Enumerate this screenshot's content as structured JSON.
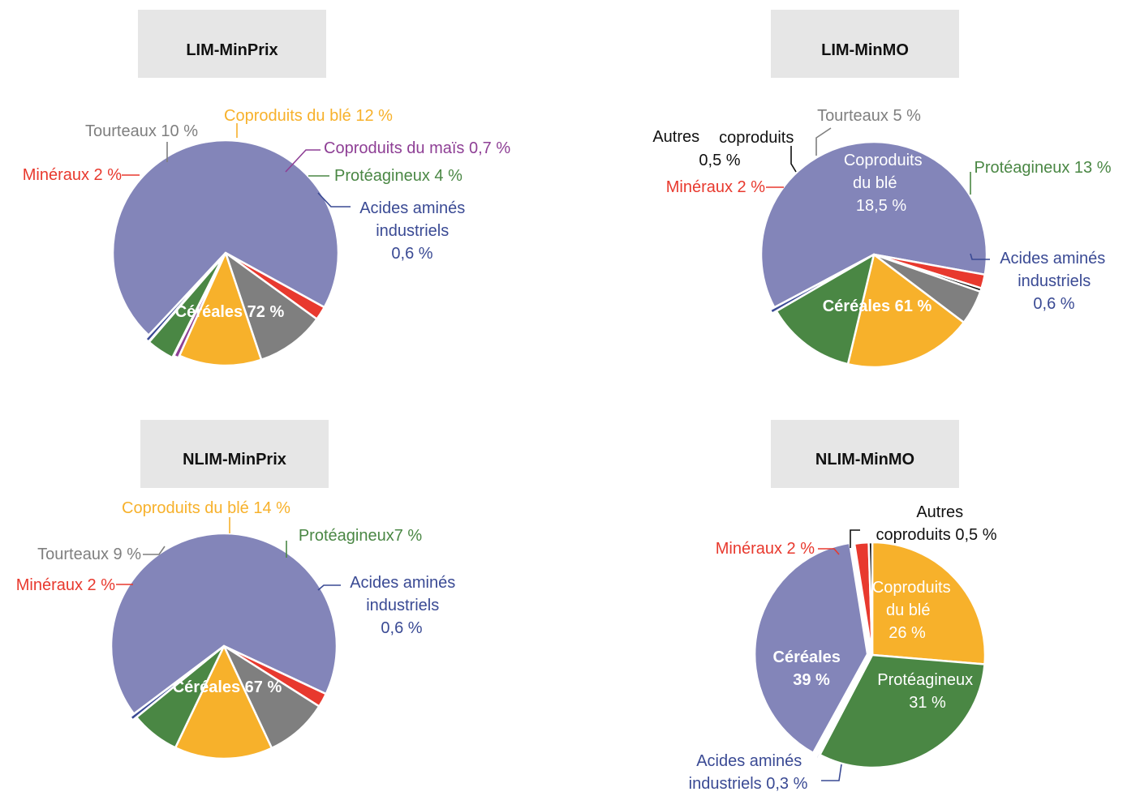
{
  "colors": {
    "cereales": "#8385b9",
    "coproduits_ble": "#f7b12b",
    "tourteaux": "#7f7f7f",
    "mineraux": "#e8392e",
    "proteagineux": "#4a8744",
    "acides_amines": "#3a4a94",
    "coproduits_mais": "#8e3f95",
    "autres_coproduits": "#111111",
    "title_box": "#e6e6e6"
  },
  "chart_data": [
    {
      "type": "pie",
      "title": "LIM-MinPrix",
      "slices": [
        {
          "key": "cereales",
          "label": "Céréales 72 %",
          "value": 72,
          "color": "#8385b9"
        },
        {
          "key": "mineraux",
          "label": "Minéraux 2 %",
          "value": 2,
          "color": "#e8392e"
        },
        {
          "key": "tourteaux",
          "label": "Tourteaux 10 %",
          "value": 10,
          "color": "#7f7f7f"
        },
        {
          "key": "coproduits_ble",
          "label": "Coproduits du blé 12 %",
          "value": 12,
          "color": "#f7b12b"
        },
        {
          "key": "coproduits_mais",
          "label": "Coproduits du maïs 0,7 %",
          "value": 0.7,
          "color": "#8e3f95"
        },
        {
          "key": "proteagineux",
          "label": "Protéagineux 4 %",
          "value": 4,
          "color": "#4a8744"
        },
        {
          "key": "acides_amines",
          "label": "Acides aminés industriels 0,6 %",
          "value": 0.6,
          "color": "#3a4a94"
        }
      ]
    },
    {
      "type": "pie",
      "title": "LIM-MinMO",
      "slices": [
        {
          "key": "cereales",
          "label": "Céréales 61 %",
          "value": 61,
          "color": "#8385b9"
        },
        {
          "key": "mineraux",
          "label": "Minéraux 2 %",
          "value": 2,
          "color": "#e8392e"
        },
        {
          "key": "autres_coproduits",
          "label": "Autres coproduits 0,5 %",
          "value": 0.5,
          "color": "#111111"
        },
        {
          "key": "tourteaux",
          "label": "Tourteaux 5 %",
          "value": 5,
          "color": "#7f7f7f"
        },
        {
          "key": "coproduits_ble",
          "label": "Coproduits du blé 18,5 %",
          "value": 18.5,
          "color": "#f7b12b"
        },
        {
          "key": "proteagineux",
          "label": "Protéagineux 13 %",
          "value": 13,
          "color": "#4a8744"
        },
        {
          "key": "acides_amines",
          "label": "Acides aminés industriels 0,6 %",
          "value": 0.6,
          "color": "#3a4a94"
        }
      ]
    },
    {
      "type": "pie",
      "title": "NLIM-MinPrix",
      "slices": [
        {
          "key": "cereales",
          "label": "Céréales 67 %",
          "value": 67,
          "color": "#8385b9"
        },
        {
          "key": "mineraux",
          "label": "Minéraux 2 %",
          "value": 2,
          "color": "#e8392e"
        },
        {
          "key": "tourteaux",
          "label": "Tourteaux 9 %",
          "value": 9,
          "color": "#7f7f7f"
        },
        {
          "key": "coproduits_ble",
          "label": "Coproduits du blé 14 %",
          "value": 14,
          "color": "#f7b12b"
        },
        {
          "key": "proteagineux",
          "label": "Protéagineux7 %",
          "value": 7,
          "color": "#4a8744"
        },
        {
          "key": "acides_amines",
          "label": "Acides aminés industriels 0,6 %",
          "value": 0.6,
          "color": "#3a4a94"
        }
      ]
    },
    {
      "type": "pie",
      "title": "NLIM-MinMO",
      "slices": [
        {
          "key": "coproduits_ble",
          "label": "Coproduits du blé 26 %",
          "value": 26,
          "color": "#f7b12b"
        },
        {
          "key": "proteagineux",
          "label": "Protéagineux 31 %",
          "value": 31,
          "color": "#4a8744"
        },
        {
          "key": "acides_amines",
          "label": "Acides aminés industriels 0,3 %",
          "value": 0.3,
          "color": "#3a4a94"
        },
        {
          "key": "cereales",
          "label": "Céréales 39 %",
          "value": 39,
          "color": "#8385b9"
        },
        {
          "key": "mineraux",
          "label": "Minéraux 2 %",
          "value": 2,
          "color": "#e8392e"
        },
        {
          "key": "autres_coproduits",
          "label": "Autres coproduits 0,5 %",
          "value": 0.5,
          "color": "#111111"
        }
      ]
    }
  ]
}
